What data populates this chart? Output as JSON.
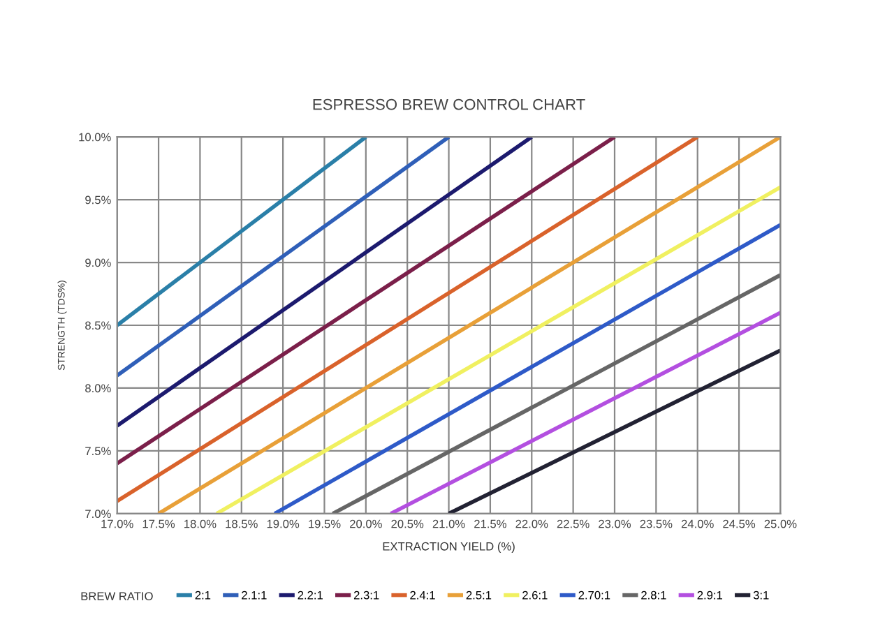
{
  "chart_data": {
    "type": "line",
    "title": "ESPRESSO BREW CONTROL CHART",
    "xlabel": "EXTRACTION YIELD (%)",
    "ylabel": "STRENGTH (TDS%)",
    "legend_title": "BREW RATIO",
    "legend": "bottom",
    "grid": true,
    "marker": "none",
    "line_style": "solid",
    "xlim": [
      17,
      25
    ],
    "ylim": [
      7,
      10
    ],
    "xticks": [
      {
        "value": 17,
        "label": "17.0%"
      },
      {
        "value": 17.5,
        "label": "17.5%"
      },
      {
        "value": 18,
        "label": "18.0%"
      },
      {
        "value": 18.5,
        "label": "18.5%"
      },
      {
        "value": 19,
        "label": "19.0%"
      },
      {
        "value": 19.5,
        "label": "19.5%"
      },
      {
        "value": 20,
        "label": "20.0%"
      },
      {
        "value": 20.5,
        "label": "20.5%"
      },
      {
        "value": 21,
        "label": "21.0%"
      },
      {
        "value": 21.5,
        "label": "21.5%"
      },
      {
        "value": 22,
        "label": "22.0%"
      },
      {
        "value": 22.5,
        "label": "22.5%"
      },
      {
        "value": 23,
        "label": "23.0%"
      },
      {
        "value": 23.5,
        "label": "23.5%"
      },
      {
        "value": 24,
        "label": "24.0%"
      },
      {
        "value": 24.5,
        "label": "24.5%"
      },
      {
        "value": 25,
        "label": "25.0%"
      }
    ],
    "yticks": [
      {
        "value": 7,
        "label": "7.0%"
      },
      {
        "value": 7.5,
        "label": "7.5%"
      },
      {
        "value": 8,
        "label": "8.0%"
      },
      {
        "value": 8.5,
        "label": "8.5%"
      },
      {
        "value": 9,
        "label": "9.0%"
      },
      {
        "value": 9.5,
        "label": "9.5%"
      },
      {
        "value": 10,
        "label": "10.0%"
      }
    ],
    "series": [
      {
        "name": "2:1",
        "color": "#2a7fa8",
        "x": [
          17,
          20
        ],
        "values": [
          8.5,
          10
        ]
      },
      {
        "name": "2.1:1",
        "color": "#2f5fb8",
        "x": [
          17,
          21
        ],
        "values": [
          8.1,
          10
        ]
      },
      {
        "name": "2.2:1",
        "color": "#1c1a6e",
        "x": [
          17,
          22
        ],
        "values": [
          7.7,
          10
        ]
      },
      {
        "name": "2.3:1",
        "color": "#7b1f4a",
        "x": [
          17,
          23
        ],
        "values": [
          7.4,
          10
        ]
      },
      {
        "name": "2.4:1",
        "color": "#d9622b",
        "x": [
          17,
          24
        ],
        "values": [
          7.1,
          10
        ]
      },
      {
        "name": "2.5:1",
        "color": "#e8a038",
        "x": [
          17.5,
          25
        ],
        "values": [
          7,
          10
        ]
      },
      {
        "name": "2.6:1",
        "color": "#f0f060",
        "x": [
          18.2,
          25
        ],
        "values": [
          7,
          9.6
        ]
      },
      {
        "name": "2.70:1",
        "color": "#2e5ac8",
        "x": [
          18.9,
          25
        ],
        "values": [
          7,
          9.3
        ]
      },
      {
        "name": "2.8:1",
        "color": "#666666",
        "x": [
          19.6,
          25
        ],
        "values": [
          7,
          8.9
        ]
      },
      {
        "name": "2.9:1",
        "color": "#b34fe0",
        "x": [
          20.3,
          25
        ],
        "values": [
          7,
          8.6
        ]
      },
      {
        "name": "3:1",
        "color": "#222233",
        "x": [
          21,
          25
        ],
        "values": [
          7,
          8.3
        ]
      }
    ]
  }
}
